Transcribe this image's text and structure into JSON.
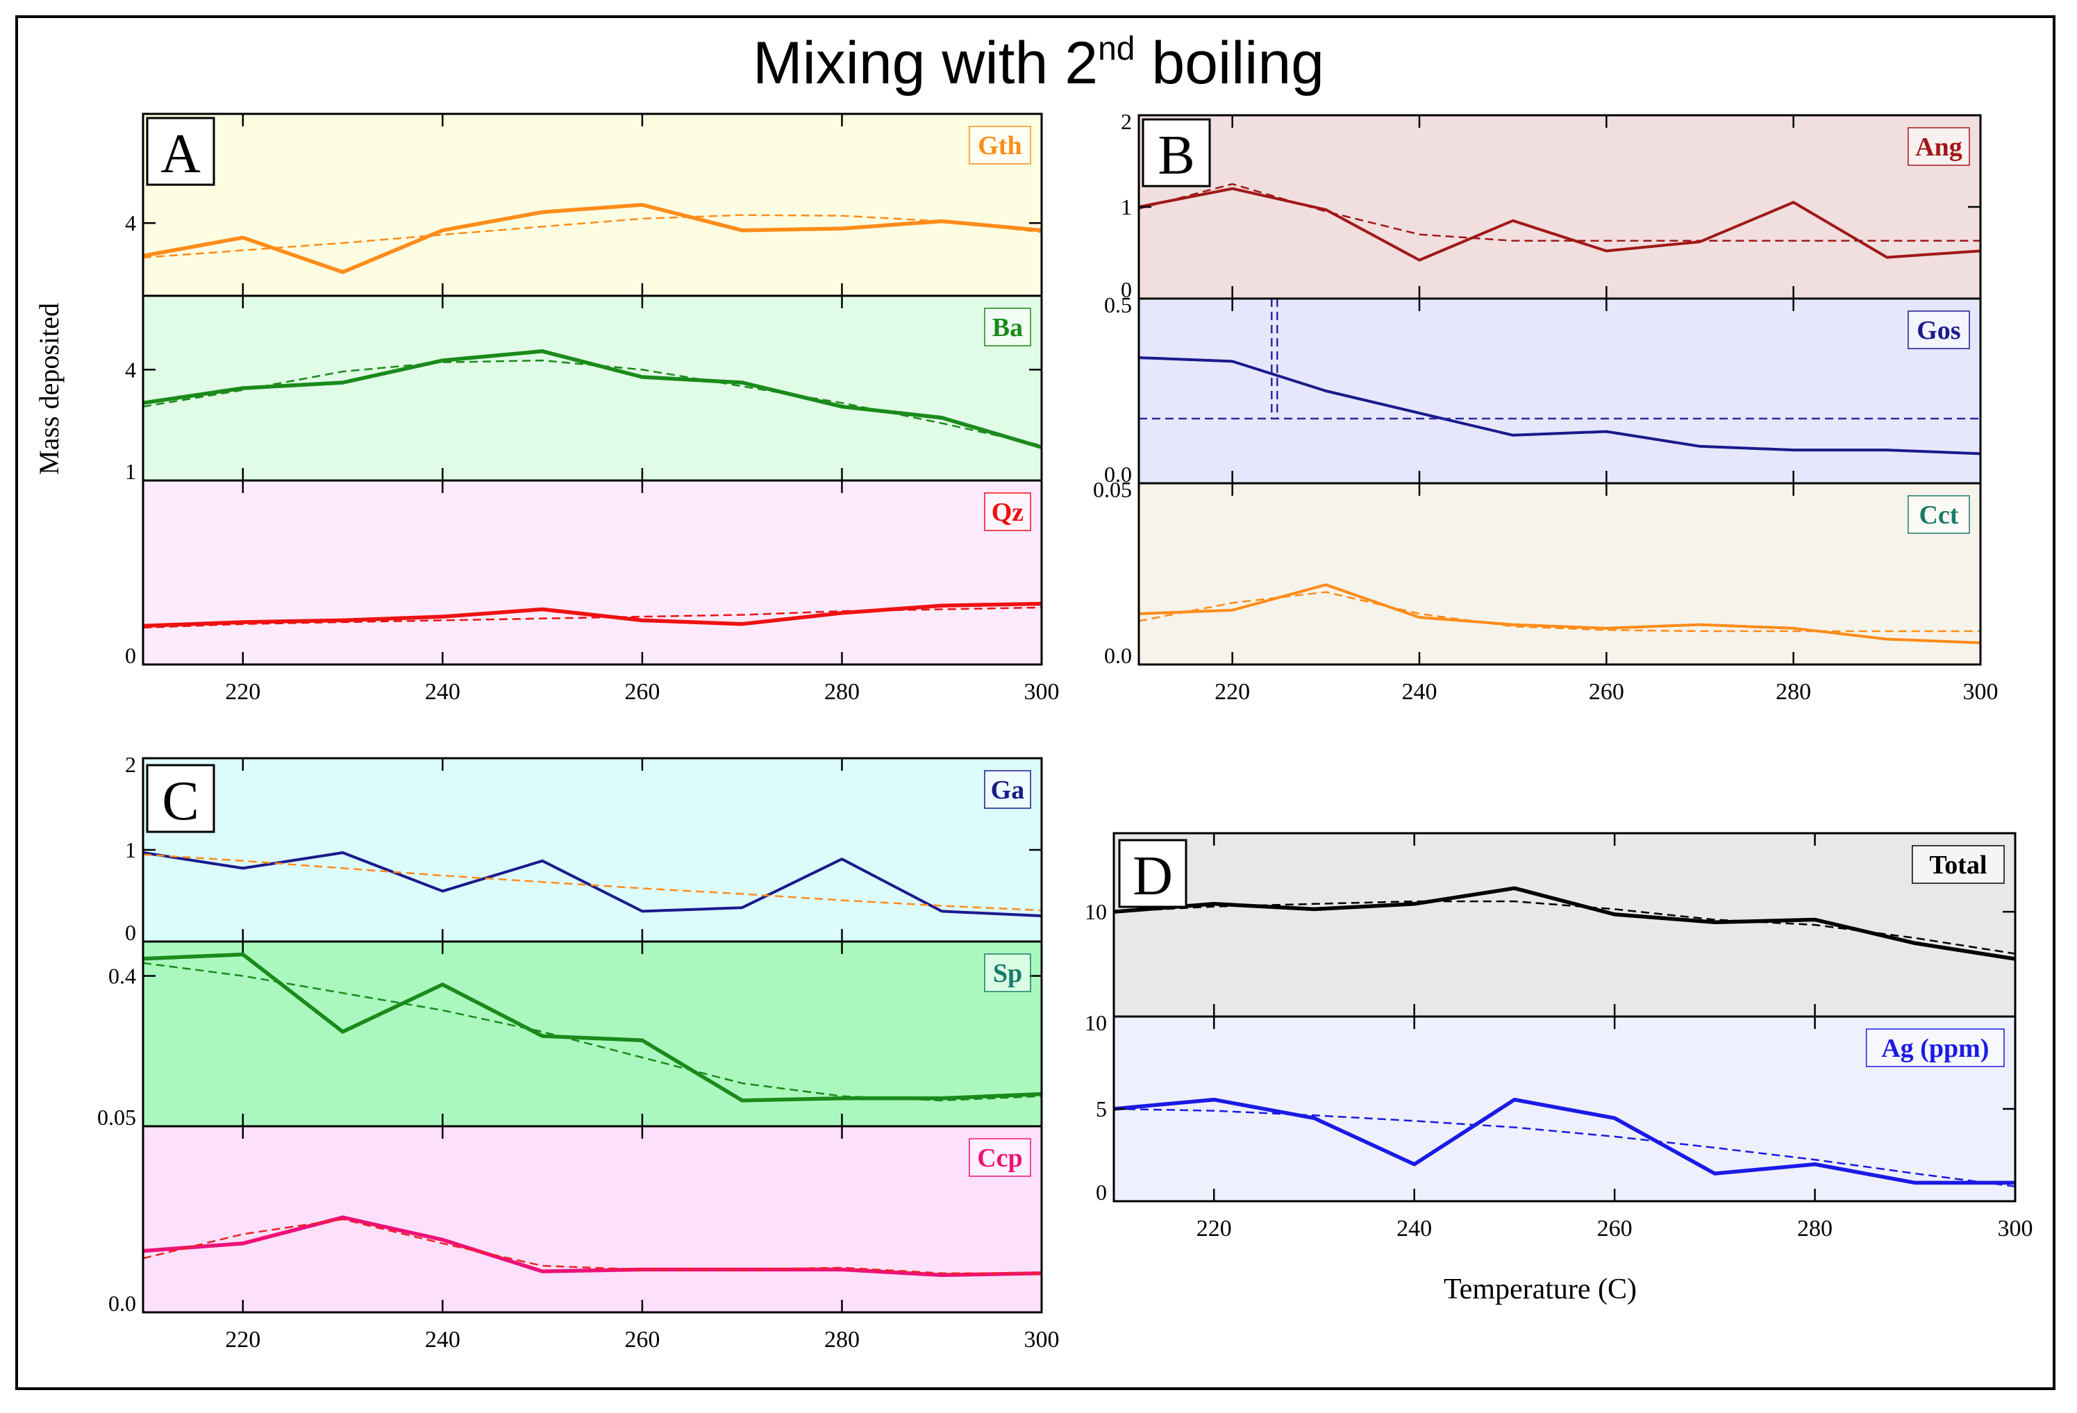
{
  "figure": {
    "title_main": "Mixing with 2",
    "title_sup": "nd",
    "title_tail": " boiling",
    "ylabel": "Mass deposited",
    "xlabel": "Temperature (C)"
  },
  "chart_data": [
    {
      "type": "line",
      "panel": "A",
      "mineral": "Gth",
      "label_color": "#ff8c1a",
      "bg": "#fdfde2",
      "x": [
        210,
        220,
        230,
        240,
        250,
        260,
        270,
        280,
        290,
        300
      ],
      "y_ticks": [
        {
          "v": 4,
          "label": "4"
        }
      ],
      "ylim": [
        2,
        7
      ],
      "series": [
        {
          "name": "Gth",
          "style": "solid",
          "color": "#ff8c1a",
          "values": [
            3.1,
            3.6,
            2.65,
            3.8,
            4.3,
            4.5,
            3.8,
            3.85,
            4.05,
            3.8
          ]
        },
        {
          "name": "Gth trend",
          "style": "dashed",
          "color": "#ff8c1a",
          "values": [
            3.05,
            3.25,
            3.45,
            3.68,
            3.9,
            4.12,
            4.22,
            4.2,
            4.05,
            3.75
          ]
        }
      ]
    },
    {
      "type": "line",
      "panel": "A",
      "mineral": "Ba",
      "label_color": "#1a8a1a",
      "bg": "#e0fbe6",
      "x": [
        210,
        220,
        230,
        240,
        250,
        260,
        270,
        280,
        290,
        300
      ],
      "y_ticks": [
        {
          "v": 4,
          "label": "4"
        },
        {
          "v": 1,
          "label": "1"
        }
      ],
      "ylim": [
        1,
        6
      ],
      "series": [
        {
          "name": "Ba",
          "style": "solid",
          "color": "#1a8a1a",
          "values": [
            3.1,
            3.5,
            3.65,
            4.25,
            4.5,
            3.8,
            3.65,
            3.0,
            2.7,
            1.9
          ]
        },
        {
          "name": "Ba trend",
          "style": "dashed",
          "color": "#1a8a1a",
          "values": [
            3.0,
            3.45,
            3.95,
            4.2,
            4.25,
            4.0,
            3.55,
            3.1,
            2.55,
            1.95
          ]
        }
      ]
    },
    {
      "type": "line",
      "panel": "A",
      "mineral": "Qz",
      "label_color": "#ee1111",
      "bg": "#fdeafd",
      "x": [
        210,
        220,
        230,
        240,
        250,
        260,
        270,
        280,
        290,
        300
      ],
      "y_ticks": [
        {
          "v": 0,
          "label": "0"
        }
      ],
      "ylim": [
        0,
        1
      ],
      "series": [
        {
          "name": "Qz",
          "style": "solid",
          "color": "#ee1111",
          "values": [
            0.21,
            0.23,
            0.24,
            0.26,
            0.3,
            0.24,
            0.22,
            0.28,
            0.32,
            0.33
          ]
        },
        {
          "name": "Qz trend",
          "style": "dashed",
          "color": "#ee1111",
          "values": [
            0.2,
            0.22,
            0.23,
            0.24,
            0.25,
            0.26,
            0.27,
            0.29,
            0.3,
            0.31
          ]
        }
      ],
      "xticks": [
        220,
        240,
        260,
        280,
        300
      ]
    },
    {
      "type": "line",
      "panel": "B",
      "mineral": "Ang",
      "label_color": "#a01818",
      "bg": "#f1dede",
      "x": [
        210,
        220,
        230,
        240,
        250,
        260,
        270,
        280,
        290,
        300
      ],
      "y_ticks": [
        {
          "v": 2,
          "label": "2"
        },
        {
          "v": 1,
          "label": "1"
        },
        {
          "v": 0,
          "label": "0"
        }
      ],
      "ylim": [
        0,
        2
      ],
      "series": [
        {
          "name": "Ang",
          "style": "solid",
          "color": "#a01818",
          "values": [
            1.0,
            1.2,
            0.97,
            0.42,
            0.85,
            0.52,
            0.62,
            1.05,
            0.45,
            0.52
          ]
        },
        {
          "name": "Ang trend",
          "style": "dashed",
          "color": "#a01818",
          "values": [
            0.98,
            1.25,
            0.95,
            0.7,
            0.63,
            0.63,
            0.63,
            0.63,
            0.63,
            0.63
          ]
        }
      ]
    },
    {
      "type": "line",
      "panel": "B",
      "mineral": "Gos",
      "label_color": "#1a1a8c",
      "bg": "#e6e6fd",
      "x": [
        210,
        220,
        230,
        240,
        250,
        260,
        270,
        280,
        290,
        300
      ],
      "y_ticks": [
        {
          "v": 0.5,
          "label": "0.5"
        },
        {
          "v": 0,
          "label": "0.0"
        }
      ],
      "ylim": [
        0,
        0.5
      ],
      "series": [
        {
          "name": "Gos",
          "style": "solid",
          "color": "#1a1a8c",
          "values": [
            0.34,
            0.33,
            0.25,
            0.19,
            0.13,
            0.14,
            0.1,
            0.09,
            0.09,
            0.08
          ]
        },
        {
          "name": "Gos trend",
          "style": "dashed",
          "color": "#2a2aa0",
          "values": [
            0.175,
            0.175,
            0.175,
            0.175,
            0.175,
            0.175,
            0.175,
            0.175,
            0.175,
            0.175
          ]
        }
      ]
    },
    {
      "type": "line",
      "panel": "B",
      "mineral": "Cct",
      "label_color": "#1a7a6a",
      "bg": "#f6f3ea",
      "x": [
        210,
        220,
        230,
        240,
        250,
        260,
        270,
        280,
        290,
        300
      ],
      "y_ticks": [
        {
          "v": 0.05,
          "label": "0.05"
        },
        {
          "v": 0,
          "label": "0.0"
        }
      ],
      "ylim": [
        0,
        0.05
      ],
      "series": [
        {
          "name": "Cct",
          "style": "solid",
          "color": "#ff8c1a",
          "values": [
            0.014,
            0.015,
            0.022,
            0.013,
            0.011,
            0.01,
            0.011,
            0.01,
            0.007,
            0.006
          ]
        },
        {
          "name": "Cct trend",
          "style": "dashed",
          "color": "#ff8c1a",
          "values": [
            0.012,
            0.017,
            0.02,
            0.014,
            0.0105,
            0.0095,
            0.0092,
            0.0092,
            0.0092,
            0.0092
          ]
        }
      ],
      "xticks": [
        220,
        240,
        260,
        280,
        300
      ]
    },
    {
      "type": "line",
      "panel": "C",
      "mineral": "Ga",
      "label_color": "#1a1a8c",
      "bg": "#dcfbfb",
      "x": [
        210,
        220,
        230,
        240,
        250,
        260,
        270,
        280,
        290,
        300
      ],
      "y_ticks": [
        {
          "v": 2,
          "label": "2"
        },
        {
          "v": 1,
          "label": "1"
        },
        {
          "v": 0,
          "label": "0"
        }
      ],
      "ylim": [
        0,
        2
      ],
      "series": [
        {
          "name": "Ga",
          "style": "solid",
          "color": "#1a1a8c",
          "values": [
            0.97,
            0.8,
            0.97,
            0.55,
            0.88,
            0.33,
            0.37,
            0.9,
            0.33,
            0.28
          ]
        },
        {
          "name": "Ga trend",
          "style": "dashed",
          "color": "#ff8c1a",
          "values": [
            0.95,
            0.88,
            0.8,
            0.72,
            0.65,
            0.58,
            0.52,
            0.45,
            0.39,
            0.34
          ]
        }
      ]
    },
    {
      "type": "line",
      "panel": "C",
      "mineral": "Sp",
      "label_color": "#1a7a6a",
      "bg": "#aaf8be",
      "x": [
        210,
        220,
        230,
        240,
        250,
        260,
        270,
        280,
        290,
        300
      ],
      "y_ticks": [
        {
          "v": 0.4,
          "label": "0.4"
        },
        {
          "v": 0.05,
          "label": "0.05"
        }
      ],
      "ylim": [
        0.05,
        0.48
      ],
      "series": [
        {
          "name": "Sp",
          "style": "solid",
          "color": "#1a8a1a",
          "values": [
            0.44,
            0.45,
            0.27,
            0.38,
            0.26,
            0.25,
            0.11,
            0.115,
            0.115,
            0.125
          ]
        },
        {
          "name": "Sp trend",
          "style": "dashed",
          "color": "#1a8a1a",
          "values": [
            0.43,
            0.4,
            0.36,
            0.32,
            0.27,
            0.21,
            0.15,
            0.12,
            0.11,
            0.12
          ]
        }
      ]
    },
    {
      "type": "line",
      "panel": "C",
      "mineral": "Ccp",
      "label_color": "#ee1177",
      "bg": "#fde0fb",
      "x": [
        210,
        220,
        230,
        240,
        250,
        260,
        270,
        280,
        290,
        300
      ],
      "y_ticks": [
        {
          "v": 0,
          "label": "0.0"
        }
      ],
      "ylim": [
        0,
        0.05
      ],
      "series": [
        {
          "name": "Ccp",
          "style": "solid",
          "color": "#ee1177",
          "values": [
            0.0165,
            0.0185,
            0.0255,
            0.0195,
            0.011,
            0.0115,
            0.0115,
            0.0115,
            0.01,
            0.0105
          ]
        },
        {
          "name": "Ccp trend",
          "style": "dashed",
          "color": "#ee2222",
          "values": [
            0.0145,
            0.021,
            0.025,
            0.0185,
            0.0125,
            0.0115,
            0.0115,
            0.012,
            0.0105,
            0.0105
          ]
        }
      ],
      "xticks": [
        220,
        240,
        260,
        280,
        300
      ]
    },
    {
      "type": "line",
      "panel": "D",
      "mineral": "Total",
      "label_color": "#000000",
      "bg": "#e8e8e8",
      "x": [
        210,
        220,
        230,
        240,
        250,
        260,
        270,
        280,
        290,
        300
      ],
      "y_ticks": [
        {
          "v": 10,
          "label": "10"
        }
      ],
      "ylim": [
        6,
        13
      ],
      "series": [
        {
          "name": "Total",
          "style": "solid",
          "color": "#000000",
          "values": [
            10.0,
            10.3,
            10.1,
            10.3,
            10.9,
            9.9,
            9.6,
            9.7,
            8.8,
            8.2
          ]
        },
        {
          "name": "Total trend",
          "style": "dashed",
          "color": "#000000",
          "values": [
            10.0,
            10.2,
            10.3,
            10.4,
            10.4,
            10.1,
            9.7,
            9.5,
            9.0,
            8.4
          ]
        }
      ]
    },
    {
      "type": "line",
      "panel": "D",
      "mineral": "Ag (ppm)",
      "label_color": "#1a1ae6",
      "bg": "#eef0fd",
      "x": [
        210,
        220,
        230,
        240,
        250,
        260,
        270,
        280,
        290,
        300
      ],
      "y_ticks": [
        {
          "v": 10,
          "label": "10"
        },
        {
          "v": 5,
          "label": "5"
        },
        {
          "v": 0,
          "label": "0"
        }
      ],
      "ylim": [
        0,
        10
      ],
      "series": [
        {
          "name": "Ag (ppm)",
          "style": "solid",
          "color": "#1a1ae6",
          "values": [
            5.0,
            5.5,
            4.5,
            2.0,
            5.5,
            4.5,
            1.5,
            2.0,
            1.0,
            1.0
          ]
        },
        {
          "name": "Ag trend",
          "style": "dashed",
          "color": "#1a1ae6",
          "values": [
            5.0,
            4.9,
            4.65,
            4.35,
            4.0,
            3.5,
            2.9,
            2.25,
            1.5,
            0.8
          ]
        }
      ],
      "xticks": [
        220,
        240,
        260,
        280,
        300
      ]
    }
  ],
  "panel_letters": [
    "A",
    "B",
    "C",
    "D"
  ]
}
